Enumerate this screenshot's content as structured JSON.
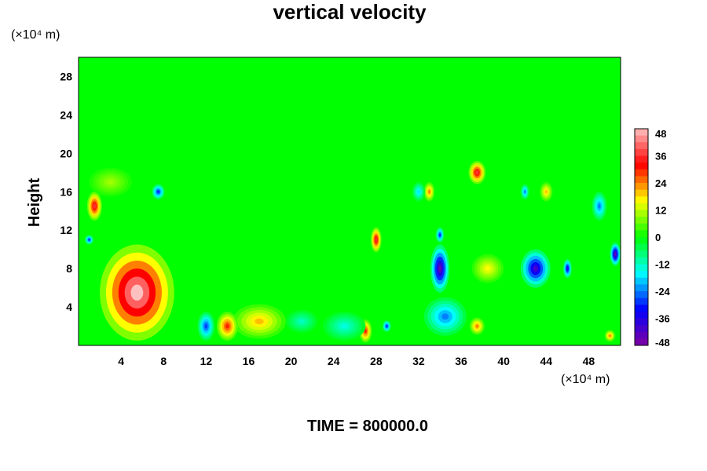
{
  "chart_data": {
    "type": "heatmap",
    "title": "vertical velocity",
    "ylabel": "Height",
    "xunit": "(×10⁴ m)",
    "yunit": "(×10⁴ m)",
    "footer": "TIME = 800000.0",
    "xlim": [
      0,
      51
    ],
    "ylim": [
      0,
      30
    ],
    "xticks": [
      "4",
      "8",
      "12",
      "16",
      "20",
      "24",
      "28",
      "32",
      "36",
      "40",
      "44",
      "48"
    ],
    "yticks": [
      "4",
      "8",
      "12",
      "16",
      "20",
      "24",
      "28"
    ],
    "colorbar": {
      "ticks": [
        "48",
        "36",
        "24",
        "12",
        "0",
        "-12",
        "-24",
        "-36",
        "-48"
      ],
      "range": [
        -48,
        48
      ],
      "colors": [
        "#8000a0",
        "#0000ff",
        "#00ffff",
        "#00ff00",
        "#ffff00",
        "#ff0000",
        "#ffc0c0"
      ]
    },
    "background_value": 0,
    "features": [
      {
        "x": 5.5,
        "y": 5.5,
        "rx": 3.5,
        "ry": 5,
        "value": 48
      },
      {
        "x": 17,
        "y": 2.5,
        "rx": 2.5,
        "ry": 1.8,
        "value": 20
      },
      {
        "x": 14,
        "y": 2,
        "rx": 1,
        "ry": 1.5,
        "value": 30
      },
      {
        "x": 1.5,
        "y": 14.5,
        "rx": 0.7,
        "ry": 1.5,
        "value": 36
      },
      {
        "x": 7.5,
        "y": 16,
        "rx": 0.6,
        "ry": 0.8,
        "value": -30
      },
      {
        "x": 12,
        "y": 2,
        "rx": 0.8,
        "ry": 1.5,
        "value": -28
      },
      {
        "x": 28,
        "y": 11,
        "rx": 0.5,
        "ry": 1.3,
        "value": 36
      },
      {
        "x": 27,
        "y": 1.5,
        "rx": 0.6,
        "ry": 1.2,
        "value": 30
      },
      {
        "x": 29,
        "y": 2,
        "rx": 0.4,
        "ry": 0.6,
        "value": -30
      },
      {
        "x": 34,
        "y": 8,
        "rx": 0.9,
        "ry": 2.5,
        "value": -44
      },
      {
        "x": 34.5,
        "y": 3,
        "rx": 2,
        "ry": 2,
        "value": -24
      },
      {
        "x": 33,
        "y": 16,
        "rx": 0.5,
        "ry": 1,
        "value": 24
      },
      {
        "x": 37.5,
        "y": 18,
        "rx": 0.8,
        "ry": 1.2,
        "value": 36
      },
      {
        "x": 37.5,
        "y": 2,
        "rx": 0.7,
        "ry": 0.9,
        "value": 24
      },
      {
        "x": 38.5,
        "y": 8,
        "rx": 1.5,
        "ry": 1.5,
        "value": 16
      },
      {
        "x": 43,
        "y": 8,
        "rx": 1.4,
        "ry": 2,
        "value": -40
      },
      {
        "x": 46,
        "y": 8,
        "rx": 0.4,
        "ry": 1,
        "value": -36
      },
      {
        "x": 50.5,
        "y": 9.5,
        "rx": 0.5,
        "ry": 1.2,
        "value": -44
      },
      {
        "x": 49,
        "y": 14.5,
        "rx": 0.7,
        "ry": 1.5,
        "value": -24
      },
      {
        "x": 50,
        "y": 1,
        "rx": 0.5,
        "ry": 0.6,
        "value": 24
      },
      {
        "x": 34,
        "y": 11.5,
        "rx": 0.4,
        "ry": 0.8,
        "value": -30
      },
      {
        "x": 32,
        "y": 16,
        "rx": 0.6,
        "ry": 1,
        "value": -18
      },
      {
        "x": 3,
        "y": 17,
        "rx": 2,
        "ry": 1.5,
        "value": 10
      },
      {
        "x": 44,
        "y": 16,
        "rx": 0.6,
        "ry": 1,
        "value": 20
      },
      {
        "x": 42,
        "y": 16,
        "rx": 0.4,
        "ry": 0.8,
        "value": -24
      },
      {
        "x": 1,
        "y": 11,
        "rx": 0.4,
        "ry": 0.5,
        "value": -30
      },
      {
        "x": 25,
        "y": 2,
        "rx": 2,
        "ry": 1.5,
        "value": -14
      },
      {
        "x": 21,
        "y": 2.5,
        "rx": 1.5,
        "ry": 1.2,
        "value": -12
      }
    ]
  }
}
